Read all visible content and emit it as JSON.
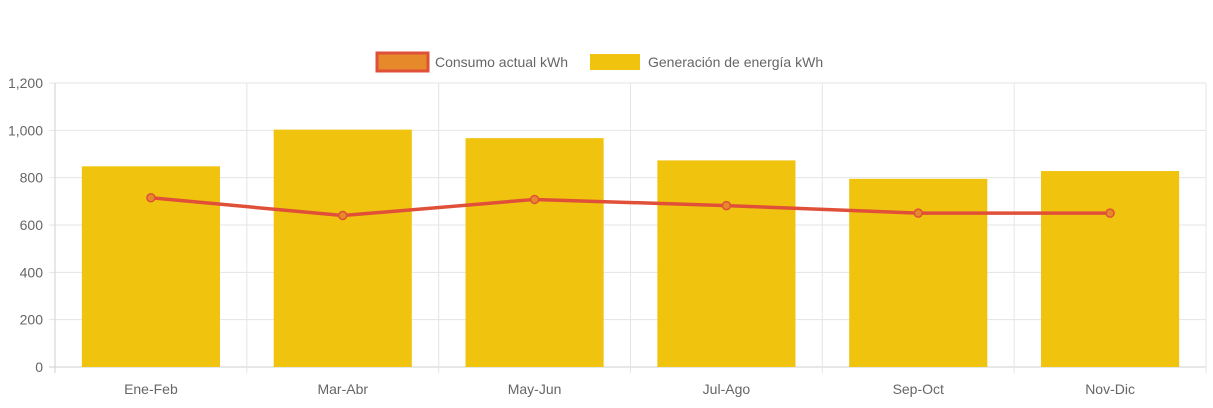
{
  "chart_data": {
    "type": "bar",
    "categories": [
      "Ene-Feb",
      "Mar-Abr",
      "May-Jun",
      "Jul-Ago",
      "Sep-Oct",
      "Nov-Dic"
    ],
    "series": [
      {
        "name": "Consumo actual kWh",
        "type": "line",
        "values": [
          715,
          640,
          708,
          682,
          650,
          650
        ],
        "color": "#e05038",
        "point_fill": "#e6892a"
      },
      {
        "name": "Generación de energía kWh",
        "type": "bar",
        "values": [
          848,
          1003,
          967,
          873,
          795,
          828
        ],
        "color": "#f0c30f"
      }
    ],
    "ylim": [
      0,
      1200
    ],
    "yticks": [
      "0",
      "200",
      "400",
      "600",
      "800",
      "1,000",
      "1,200"
    ],
    "ytick_values": [
      0,
      200,
      400,
      600,
      800,
      1000,
      1200
    ],
    "grid": true,
    "legend_position": "top-center",
    "colors": {
      "grid": "#e5e5e5",
      "axis": "#cfcfcf",
      "text": "#666666"
    }
  }
}
